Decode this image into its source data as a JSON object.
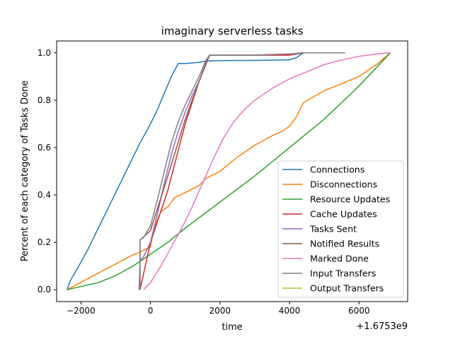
{
  "chart_data": {
    "type": "line",
    "title": "imaginary serverless tasks",
    "xlabel": "time",
    "ylabel": "Percent of each category of Tasks Done",
    "x_offset_label": "+1.6753e9",
    "xlim": [
      -2700,
      7400
    ],
    "ylim": [
      -0.05,
      1.05
    ],
    "xticks": [
      -2000,
      0,
      2000,
      4000,
      6000
    ],
    "xtick_labels": [
      "−2000",
      "0",
      "2000",
      "4000",
      "6000"
    ],
    "yticks": [
      0.0,
      0.2,
      0.4,
      0.6,
      0.8,
      1.0
    ],
    "ytick_labels": [
      "0.0",
      "0.2",
      "0.4",
      "0.6",
      "0.8",
      "1.0"
    ],
    "grid": false,
    "legend_position": "lower-right",
    "series": [
      {
        "name": "Connections",
        "color": "#1f77b4",
        "x": [
          -2400,
          -2300,
          -2100,
          -1800,
          -1500,
          -1200,
          -900,
          -600,
          -300,
          0,
          200,
          400,
          600,
          800,
          1000,
          1400,
          1600,
          2000,
          3000,
          4000,
          4200,
          4300,
          4400,
          5000,
          5600
        ],
        "y": [
          0.0,
          0.04,
          0.09,
          0.17,
          0.26,
          0.35,
          0.44,
          0.53,
          0.62,
          0.7,
          0.76,
          0.83,
          0.9,
          0.955,
          0.955,
          0.96,
          0.965,
          0.967,
          0.968,
          0.97,
          0.98,
          0.99,
          1.0,
          1.0,
          1.0
        ]
      },
      {
        "name": "Disconnections",
        "color": "#ff7f0e",
        "x": [
          -2400,
          -1500,
          -600,
          0,
          100,
          300,
          500,
          700,
          1000,
          1400,
          1600,
          2000,
          2500,
          3000,
          3500,
          3800,
          4000,
          4100,
          4200,
          4300,
          4400,
          5000,
          5500,
          6000,
          6500,
          6900
        ],
        "y": [
          0.0,
          0.07,
          0.14,
          0.18,
          0.26,
          0.33,
          0.35,
          0.39,
          0.41,
          0.44,
          0.47,
          0.5,
          0.56,
          0.61,
          0.65,
          0.67,
          0.69,
          0.71,
          0.73,
          0.76,
          0.79,
          0.84,
          0.87,
          0.9,
          0.95,
          1.0
        ]
      },
      {
        "name": "Resource Updates",
        "color": "#2ca02c",
        "x": [
          -2400,
          -1500,
          -1000,
          -500,
          0,
          500,
          1000,
          2000,
          3000,
          4000,
          5000,
          6000,
          6900
        ],
        "y": [
          0.0,
          0.03,
          0.06,
          0.1,
          0.15,
          0.2,
          0.26,
          0.37,
          0.48,
          0.6,
          0.72,
          0.86,
          1.0
        ]
      },
      {
        "name": "Cache Updates",
        "color": "#d62728",
        "x": [
          -300,
          0,
          500,
          1000,
          1400,
          1700,
          2000,
          3000,
          4000,
          4400
        ],
        "y": [
          0.0,
          0.2,
          0.42,
          0.7,
          0.88,
          0.99,
          0.99,
          0.99,
          0.99,
          1.0
        ]
      },
      {
        "name": "Tasks Sent",
        "color": "#9467bd",
        "x": [
          -330,
          -300,
          -250,
          -200,
          0,
          200,
          400,
          600,
          800,
          1000,
          1200,
          1400,
          1600,
          1700,
          2000,
          3000,
          4000,
          4400
        ],
        "y": [
          0.0,
          0.12,
          0.13,
          0.14,
          0.2,
          0.32,
          0.45,
          0.57,
          0.67,
          0.75,
          0.82,
          0.88,
          0.96,
          0.99,
          0.99,
          0.99,
          0.995,
          1.0
        ]
      },
      {
        "name": "Notified Results",
        "color": "#8c564b",
        "x": [
          -300,
          -300,
          0,
          500,
          1000,
          1400,
          1700,
          2000,
          3000,
          4000,
          4400
        ],
        "y": [
          0.0,
          0.21,
          0.25,
          0.48,
          0.72,
          0.88,
          0.99,
          0.99,
          0.99,
          0.995,
          1.0
        ]
      },
      {
        "name": "Marked Done",
        "color": "#e377c2",
        "x": [
          -200,
          0,
          300,
          600,
          900,
          1200,
          1500,
          1800,
          2100,
          2400,
          2700,
          3000,
          3500,
          4000,
          4500,
          5000,
          5500,
          6000,
          6500,
          6900
        ],
        "y": [
          0.0,
          0.03,
          0.1,
          0.18,
          0.26,
          0.35,
          0.45,
          0.55,
          0.64,
          0.71,
          0.76,
          0.8,
          0.85,
          0.89,
          0.92,
          0.95,
          0.97,
          0.985,
          0.995,
          1.0
        ]
      },
      {
        "name": "Input Transfers",
        "color": "#7f7f7f",
        "x": [
          -300,
          -300,
          -200,
          0,
          200,
          400,
          600,
          800,
          1000,
          1200,
          1400,
          1600,
          1700,
          2000,
          3000,
          4000,
          4400,
          5000,
          5600
        ],
        "y": [
          0.0,
          0.21,
          0.22,
          0.27,
          0.38,
          0.5,
          0.62,
          0.71,
          0.78,
          0.84,
          0.9,
          0.97,
          0.99,
          0.99,
          0.99,
          0.995,
          1.0,
          1.0,
          1.0
        ]
      },
      {
        "name": "Output Transfers",
        "color": "#bcbd22",
        "x": [],
        "y": []
      }
    ]
  }
}
